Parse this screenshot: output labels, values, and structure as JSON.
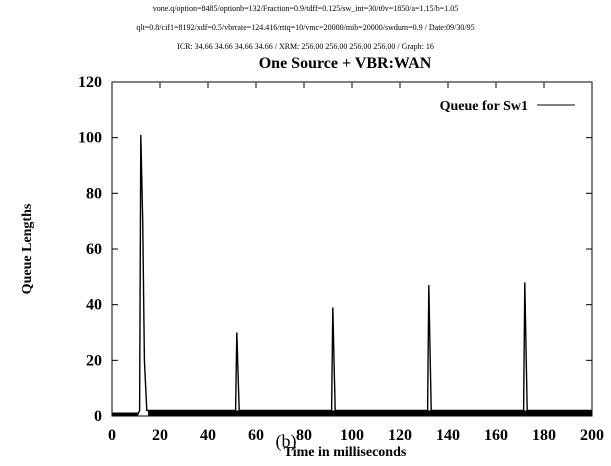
{
  "header": {
    "line1": "vone.q/option=8485/optionb=132/Fraction=0.9/tdff=0.125/sw_int=30/t0v=1850/a=1.15/b=1.05",
    "line2": "qlt=0.8/cif1=8192/xdf=0.5/vbrrate=124.416/rttq=10/vmc=20000/mib=20000/swdum=0.9 / Date:09/30/95",
    "line3": "ICR: 34.66 34.66 34.66 34.66 / XRM: 256.00 256.00 256.00 256.00 / Graph: 16"
  },
  "chart_data": {
    "type": "line",
    "title": "One Source + VBR:WAN",
    "xlabel": "Time in milliseconds",
    "ylabel": "Queue Lengths",
    "xlim": [
      0,
      200
    ],
    "ylim": [
      0,
      120
    ],
    "xticks": [
      "0",
      "20",
      "40",
      "60",
      "80",
      "100",
      "120",
      "140",
      "160",
      "180",
      "200"
    ],
    "yticks": [
      "0",
      "20",
      "40",
      "60",
      "80",
      "100",
      "120"
    ],
    "grid": false,
    "legend_position": "top-right",
    "series": [
      {
        "name": "Queue for Sw1",
        "color": "#000000",
        "baseline_segments": [
          {
            "x": [
              0,
              11
            ],
            "y": [
              0,
              1
            ]
          },
          {
            "x": [
              15,
              200
            ],
            "y": [
              0,
              2
            ]
          }
        ],
        "points": [
          {
            "x": 0,
            "y": 1
          },
          {
            "x": 11,
            "y": 1
          },
          {
            "x": 11.5,
            "y": 2
          },
          {
            "x": 12,
            "y": 101
          },
          {
            "x": 12.8,
            "y": 70
          },
          {
            "x": 13.5,
            "y": 20
          },
          {
            "x": 14.5,
            "y": 2
          },
          {
            "x": 51.5,
            "y": 2
          },
          {
            "x": 52,
            "y": 30
          },
          {
            "x": 53,
            "y": 2
          },
          {
            "x": 91.5,
            "y": 2
          },
          {
            "x": 92,
            "y": 39
          },
          {
            "x": 93,
            "y": 2
          },
          {
            "x": 131.5,
            "y": 2
          },
          {
            "x": 132,
            "y": 47
          },
          {
            "x": 133,
            "y": 2
          },
          {
            "x": 171.5,
            "y": 2
          },
          {
            "x": 172,
            "y": 48
          },
          {
            "x": 173,
            "y": 2
          },
          {
            "x": 200,
            "y": 2
          }
        ]
      }
    ]
  },
  "panel_label": "(b)"
}
